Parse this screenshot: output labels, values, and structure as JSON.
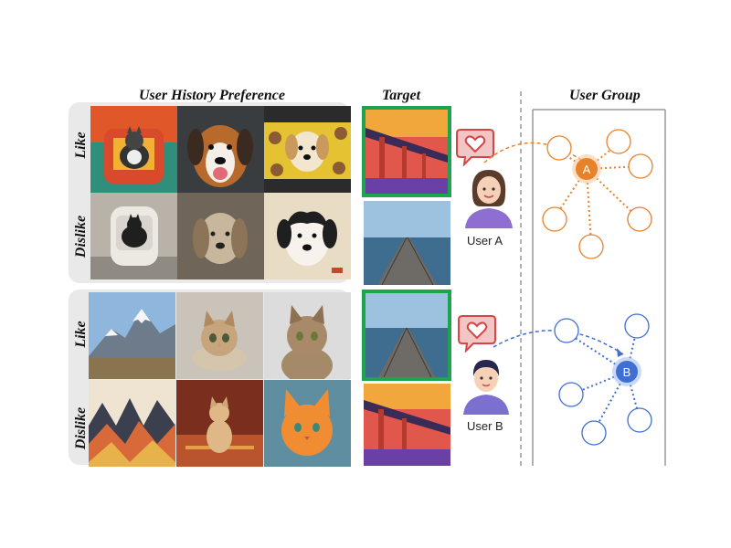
{
  "headers": {
    "history": "User History Preference",
    "target": "Target",
    "group": "User Group"
  },
  "rows": {
    "like": "Like",
    "dislike": "Dislike"
  },
  "users": {
    "a": {
      "label": "User A",
      "node": "A",
      "color": "#e8822a"
    },
    "b": {
      "label": "User B",
      "node": "B",
      "color": "#3f6fd1"
    }
  },
  "icons": [
    "heart-speech-icon",
    "user-avatar-female-icon",
    "user-avatar-male-icon"
  ],
  "colors": {
    "target_border": "#1ea44f",
    "panel_bg": "#e9e9e9",
    "group_box": "#999999"
  }
}
